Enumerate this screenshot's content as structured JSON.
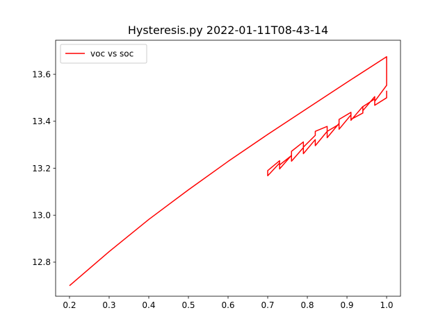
{
  "chart_data": {
    "type": "line",
    "title": "Hysteresis.py   2022-01-11T08-43-14",
    "xlabel": "",
    "ylabel": "",
    "xlim": [
      0.165,
      1.035
    ],
    "ylim": [
      12.655,
      13.745
    ],
    "x_ticks": [
      {
        "value": 0.2,
        "label": "0.2"
      },
      {
        "value": 0.3,
        "label": "0.3"
      },
      {
        "value": 0.4,
        "label": "0.4"
      },
      {
        "value": 0.5,
        "label": "0.5"
      },
      {
        "value": 0.6,
        "label": "0.6"
      },
      {
        "value": 0.7,
        "label": "0.7"
      },
      {
        "value": 0.8,
        "label": "0.8"
      },
      {
        "value": 0.9,
        "label": "0.9"
      },
      {
        "value": 1.0,
        "label": "1.0"
      }
    ],
    "y_ticks": [
      {
        "value": 12.8,
        "label": "12.8"
      },
      {
        "value": 13.0,
        "label": "13.0"
      },
      {
        "value": 13.2,
        "label": "13.2"
      },
      {
        "value": 13.4,
        "label": "13.4"
      },
      {
        "value": 13.6,
        "label": "13.6"
      }
    ],
    "grid": false,
    "legend": {
      "placement": "upper-left"
    },
    "series": [
      {
        "name": "voc vs soc",
        "color": "#ff0000",
        "x": [
          0.2,
          0.3,
          0.4,
          0.5,
          0.6,
          0.7,
          0.8,
          0.9,
          1.0,
          1.0,
          0.97,
          0.97,
          0.94,
          0.94,
          0.91,
          0.91,
          0.88,
          0.88,
          0.85,
          0.85,
          0.82,
          0.82,
          0.79,
          0.79,
          0.76,
          0.76,
          0.73,
          0.73,
          0.7,
          0.7,
          0.73,
          0.73,
          0.76,
          0.76,
          0.79,
          0.79,
          0.82,
          0.82,
          0.85,
          0.85,
          0.88,
          0.88,
          0.91,
          0.91,
          0.94,
          0.94,
          0.97,
          0.97,
          1.0,
          1.0
        ],
        "y": [
          12.7,
          12.845,
          12.982,
          13.108,
          13.229,
          13.344,
          13.455,
          13.566,
          13.675,
          13.553,
          13.485,
          13.505,
          13.445,
          13.463,
          13.404,
          13.427,
          13.366,
          13.391,
          13.33,
          13.357,
          13.296,
          13.322,
          13.262,
          13.288,
          13.23,
          13.255,
          13.197,
          13.222,
          13.168,
          13.19,
          13.232,
          13.214,
          13.254,
          13.272,
          13.312,
          13.29,
          13.34,
          13.357,
          13.378,
          13.357,
          13.387,
          13.408,
          13.438,
          13.408,
          13.435,
          13.462,
          13.495,
          13.468,
          13.5,
          13.53
        ]
      }
    ]
  }
}
